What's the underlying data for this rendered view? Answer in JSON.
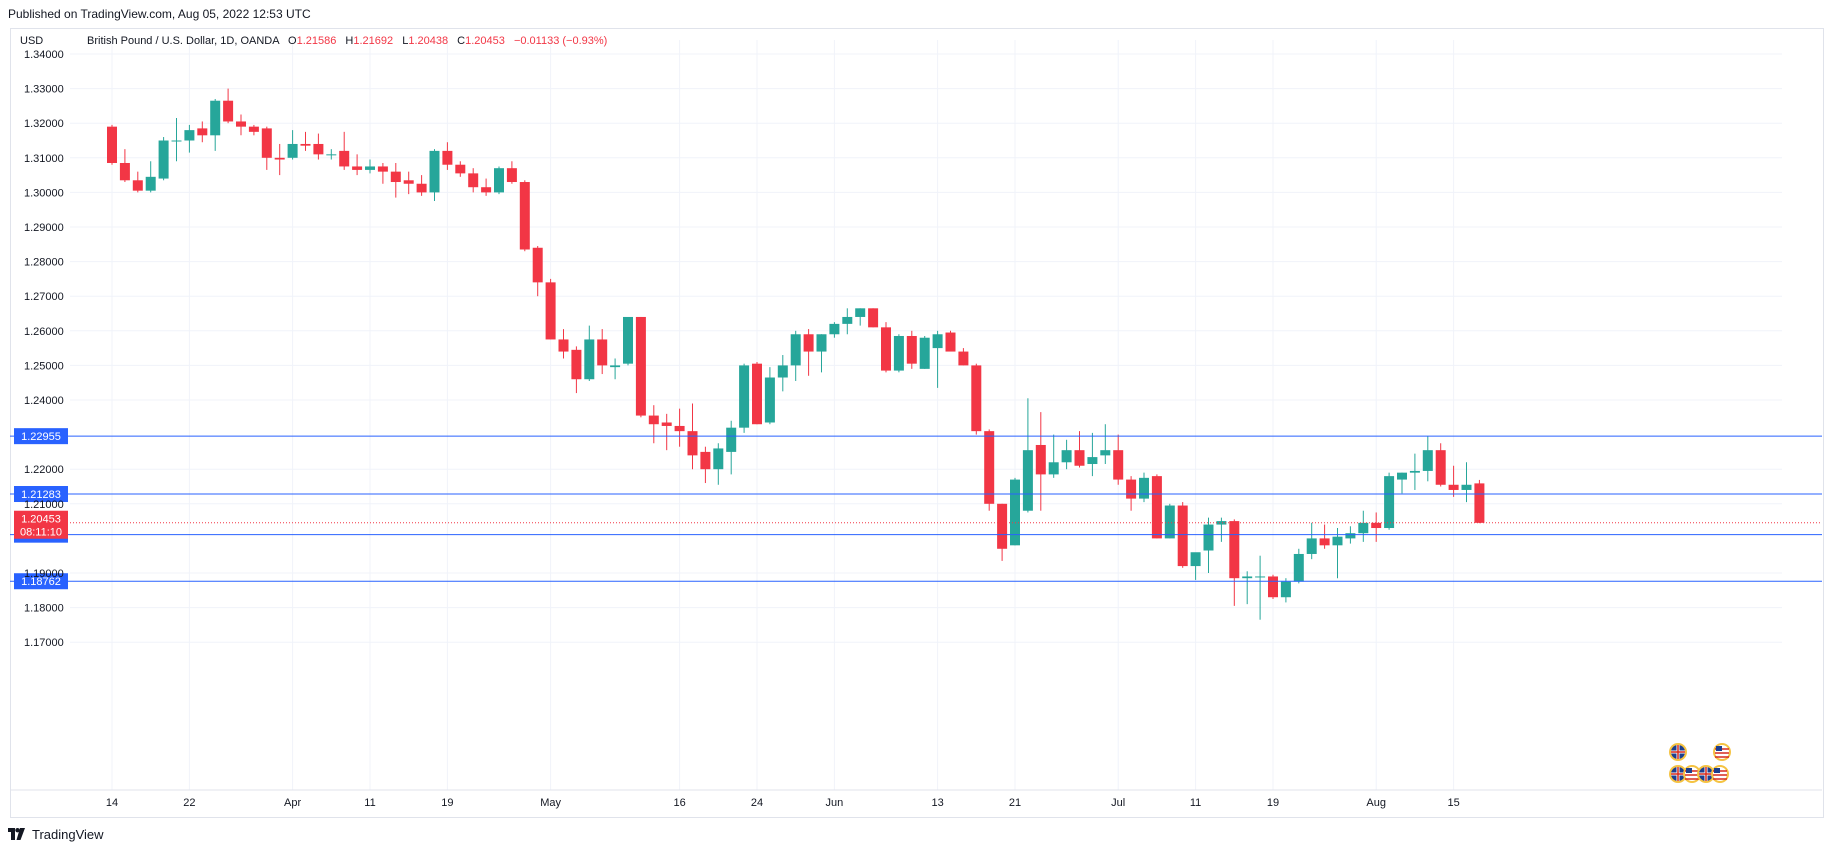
{
  "header": {
    "published": "Published on TradingView.com, Aug 05, 2022 12:53 UTC"
  },
  "footer": {
    "brand": "TradingView"
  },
  "legend": {
    "currency": "USD",
    "symbol": "British Pound / U.S. Dollar, 1D, OANDA",
    "o_label": "O",
    "o_value": "1.21586",
    "h_label": "H",
    "h_value": "1.21692",
    "l_label": "L",
    "l_value": "1.20438",
    "c_label": "C",
    "c_value": "1.20453",
    "change": "−0.01133 (−0.93%)"
  },
  "colors": {
    "up": "#26a69a",
    "down": "#f23645",
    "hline": "#2962ff",
    "last_price_label": "#f23645",
    "grid": "#f0f3fa",
    "axis_text": "#131722"
  },
  "icons": [
    "gb-flag-icon",
    "us-flag-icon"
  ],
  "chart_data": {
    "type": "candlestick",
    "y_axis": {
      "ticks": [
        "1.34000",
        "1.33000",
        "1.32000",
        "1.31000",
        "1.30000",
        "1.29000",
        "1.28000",
        "1.27000",
        "1.26000",
        "1.25000",
        "1.24000",
        "1.22000",
        "1.21000",
        "1.19000",
        "1.18000",
        "1.17000"
      ],
      "tick_values": [
        1.34,
        1.33,
        1.32,
        1.31,
        1.3,
        1.29,
        1.28,
        1.27,
        1.26,
        1.25,
        1.24,
        1.22,
        1.21,
        1.19,
        1.18,
        1.17
      ],
      "range": [
        1.165,
        1.345
      ],
      "grid": true
    },
    "x_axis": {
      "labels": [
        "14",
        "22",
        "Apr",
        "11",
        "19",
        "May",
        "16",
        "24",
        "Jun",
        "13",
        "21",
        "Jul",
        "11",
        "19",
        "Aug",
        "15"
      ],
      "label_index": [
        0,
        6,
        14,
        20,
        26,
        34,
        44,
        50,
        56,
        64,
        70,
        78,
        84,
        90,
        98,
        104
      ],
      "grid": true
    },
    "horizontal_lines": [
      {
        "value": 1.22955,
        "label": "1.22955"
      },
      {
        "value": 1.21283,
        "label": "1.21283"
      },
      {
        "value": 1.20108,
        "label": "1.20108"
      },
      {
        "value": 1.18762,
        "label": "1.18762"
      }
    ],
    "last_price": {
      "value": 1.20453,
      "label": "1.20453",
      "countdown": "08:11:10"
    },
    "ohlc": [
      [
        1.319,
        1.3195,
        1.308,
        1.3085
      ],
      [
        1.3085,
        1.3125,
        1.303,
        1.3035
      ],
      [
        1.3035,
        1.306,
        1.3,
        1.3005
      ],
      [
        1.3005,
        1.309,
        1.3,
        1.3045
      ],
      [
        1.304,
        1.316,
        1.3035,
        1.315
      ],
      [
        1.315,
        1.3215,
        1.309,
        1.315
      ],
      [
        1.315,
        1.3195,
        1.3115,
        1.318
      ],
      [
        1.3185,
        1.3205,
        1.3145,
        1.3165
      ],
      [
        1.3165,
        1.327,
        1.312,
        1.3265
      ],
      [
        1.3265,
        1.33,
        1.32,
        1.3205
      ],
      [
        1.3205,
        1.3225,
        1.3165,
        1.319
      ],
      [
        1.319,
        1.3195,
        1.3165,
        1.3175
      ],
      [
        1.3185,
        1.319,
        1.3065,
        1.31
      ],
      [
        1.31,
        1.314,
        1.305,
        1.3095
      ],
      [
        1.31,
        1.318,
        1.3095,
        1.314
      ],
      [
        1.314,
        1.3175,
        1.312,
        1.3135
      ],
      [
        1.314,
        1.317,
        1.3095,
        1.311
      ],
      [
        1.311,
        1.3125,
        1.3095,
        1.311
      ],
      [
        1.312,
        1.3175,
        1.3065,
        1.3075
      ],
      [
        1.3075,
        1.311,
        1.305,
        1.3065
      ],
      [
        1.3065,
        1.3095,
        1.3055,
        1.3075
      ],
      [
        1.3075,
        1.3085,
        1.3025,
        1.306
      ],
      [
        1.306,
        1.3085,
        1.2985,
        1.303
      ],
      [
        1.3035,
        1.306,
        1.2995,
        1.3025
      ],
      [
        1.3025,
        1.305,
        1.299,
        1.3
      ],
      [
        1.3,
        1.3125,
        1.2975,
        1.312
      ],
      [
        1.312,
        1.3145,
        1.3065,
        1.308
      ],
      [
        1.308,
        1.309,
        1.3045,
        1.3055
      ],
      [
        1.3055,
        1.307,
        1.3,
        1.3015
      ],
      [
        1.3015,
        1.304,
        1.299,
        1.3
      ],
      [
        1.3,
        1.3075,
        1.2995,
        1.307
      ],
      [
        1.307,
        1.309,
        1.3025,
        1.303
      ],
      [
        1.303,
        1.3035,
        1.283,
        1.2835
      ],
      [
        1.284,
        1.2845,
        1.27,
        1.274
      ],
      [
        1.274,
        1.275,
        1.2575,
        1.2575
      ],
      [
        1.2575,
        1.2605,
        1.252,
        1.254
      ],
      [
        1.2545,
        1.2555,
        1.242,
        1.246
      ],
      [
        1.246,
        1.2615,
        1.2455,
        1.2575
      ],
      [
        1.2575,
        1.2605,
        1.2475,
        1.25
      ],
      [
        1.2495,
        1.252,
        1.246,
        1.25
      ],
      [
        1.2505,
        1.264,
        1.25,
        1.264
      ],
      [
        1.264,
        1.264,
        1.235,
        1.2355
      ],
      [
        1.2355,
        1.2385,
        1.2275,
        1.233
      ],
      [
        1.2335,
        1.236,
        1.2255,
        1.2325
      ],
      [
        1.2325,
        1.2375,
        1.2265,
        1.231
      ],
      [
        1.231,
        1.239,
        1.22,
        1.224
      ],
      [
        1.225,
        1.2265,
        1.216,
        1.22
      ],
      [
        1.22,
        1.2275,
        1.2155,
        1.226
      ],
      [
        1.225,
        1.234,
        1.2185,
        1.232
      ],
      [
        1.232,
        1.2505,
        1.2305,
        1.25
      ],
      [
        1.2505,
        1.251,
        1.233,
        1.233
      ],
      [
        1.2335,
        1.2495,
        1.233,
        1.2465
      ],
      [
        1.2465,
        1.253,
        1.2425,
        1.25
      ],
      [
        1.25,
        1.26,
        1.2455,
        1.259
      ],
      [
        1.259,
        1.2605,
        1.247,
        1.254
      ],
      [
        1.254,
        1.259,
        1.248,
        1.259
      ],
      [
        1.259,
        1.2625,
        1.258,
        1.262
      ],
      [
        1.262,
        1.2665,
        1.259,
        1.264
      ],
      [
        1.264,
        1.2665,
        1.2615,
        1.2665
      ],
      [
        1.2665,
        1.2665,
        1.261,
        1.261
      ],
      [
        1.261,
        1.2625,
        1.248,
        1.2485
      ],
      [
        1.2485,
        1.259,
        1.248,
        1.2585
      ],
      [
        1.2585,
        1.26,
        1.249,
        1.2505
      ],
      [
        1.249,
        1.2585,
        1.249,
        1.258
      ],
      [
        1.255,
        1.26,
        1.2435,
        1.259
      ],
      [
        1.2595,
        1.26,
        1.254,
        1.254
      ],
      [
        1.254,
        1.255,
        1.25,
        1.25
      ],
      [
        1.25,
        1.2505,
        1.23,
        1.231
      ],
      [
        1.231,
        1.2315,
        1.208,
        1.21
      ],
      [
        1.21,
        1.21,
        1.1935,
        1.197
      ],
      [
        1.198,
        1.2175,
        1.198,
        1.217
      ],
      [
        1.208,
        1.2405,
        1.2075,
        1.2255
      ],
      [
        1.227,
        1.2365,
        1.208,
        1.2185
      ],
      [
        1.2185,
        1.23,
        1.2175,
        1.222
      ],
      [
        1.222,
        1.2285,
        1.22,
        1.2255
      ],
      [
        1.2255,
        1.231,
        1.2205,
        1.221
      ],
      [
        1.2215,
        1.2305,
        1.218,
        1.2235
      ],
      [
        1.224,
        1.233,
        1.2215,
        1.2255
      ],
      [
        1.2255,
        1.23,
        1.2155,
        1.217
      ],
      [
        1.217,
        1.218,
        1.208,
        1.2115
      ],
      [
        1.2115,
        1.219,
        1.2105,
        1.2175
      ],
      [
        1.218,
        1.2185,
        1.2,
        1.2
      ],
      [
        1.2,
        1.21,
        1.2,
        1.2095
      ],
      [
        1.2095,
        1.2105,
        1.1915,
        1.192
      ],
      [
        1.192,
        1.1945,
        1.188,
        1.196
      ],
      [
        1.1965,
        1.206,
        1.19,
        1.204
      ],
      [
        1.204,
        1.206,
        1.199,
        1.205
      ],
      [
        1.205,
        1.2055,
        1.1805,
        1.1885
      ],
      [
        1.1885,
        1.1905,
        1.181,
        1.189
      ],
      [
        1.189,
        1.195,
        1.1765,
        1.189
      ],
      [
        1.189,
        1.1895,
        1.1825,
        1.183
      ],
      [
        1.183,
        1.1885,
        1.1815,
        1.1875
      ],
      [
        1.1875,
        1.197,
        1.187,
        1.1955
      ],
      [
        1.1955,
        1.2045,
        1.194,
        1.2
      ],
      [
        1.2,
        1.204,
        1.197,
        1.198
      ],
      [
        1.198,
        1.203,
        1.1885,
        1.2005
      ],
      [
        1.2,
        1.2035,
        1.1985,
        1.2015
      ],
      [
        1.2015,
        1.208,
        1.199,
        1.2045
      ],
      [
        1.2045,
        1.2075,
        1.199,
        1.203
      ],
      [
        1.203,
        1.219,
        1.2025,
        1.218
      ],
      [
        1.217,
        1.219,
        1.213,
        1.219
      ],
      [
        1.219,
        1.2245,
        1.214,
        1.2195
      ],
      [
        1.2195,
        1.2295,
        1.2165,
        1.2255
      ],
      [
        1.2255,
        1.2275,
        1.215,
        1.2155
      ],
      [
        1.2155,
        1.221,
        1.212,
        1.214
      ],
      [
        1.214,
        1.222,
        1.2105,
        1.2155
      ],
      [
        1.2159,
        1.2169,
        1.2044,
        1.2045
      ]
    ]
  }
}
